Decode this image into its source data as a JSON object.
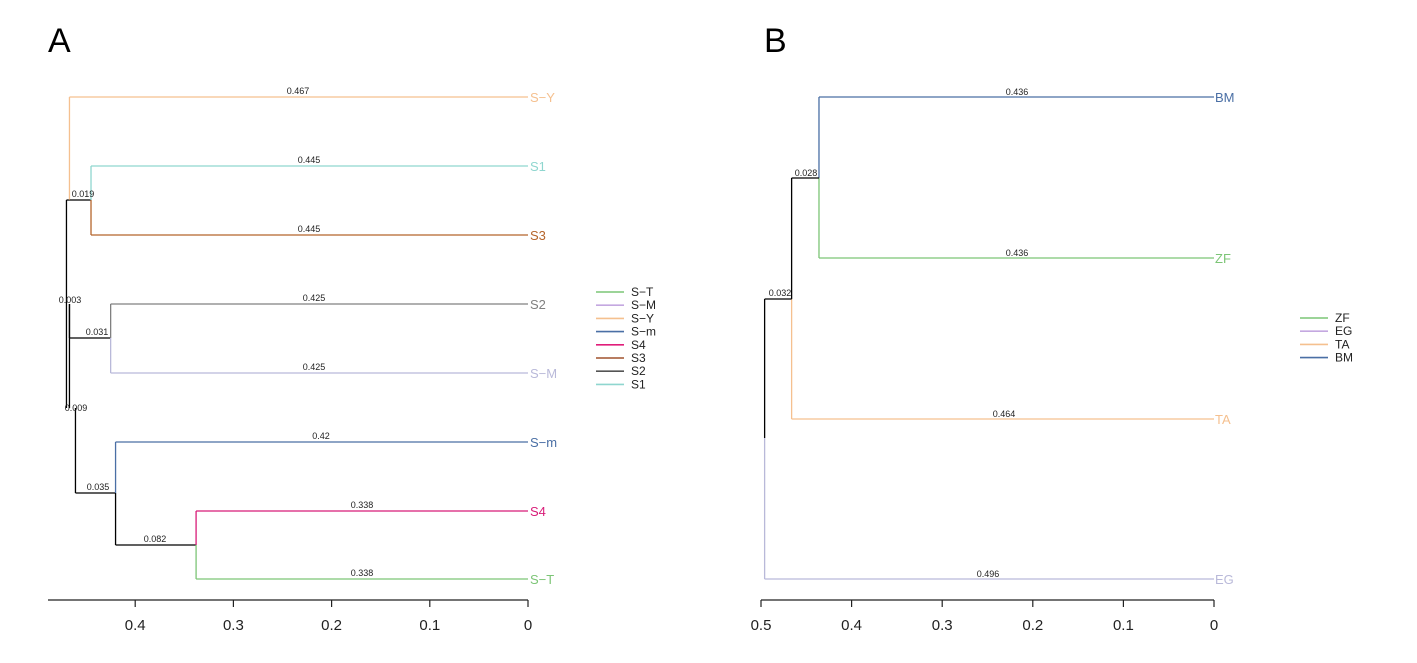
{
  "chart_data": [
    {
      "type": "dendrogram",
      "panel_label": "A",
      "xlim": [
        0.47,
        0
      ],
      "x_ticks": [
        0.4,
        0.3,
        0.2,
        0.1,
        0
      ],
      "x_tick_labels": [
        "0.4",
        "0.3",
        "0.2",
        "0.1",
        "0"
      ],
      "leaves": [
        {
          "name": "S−Y",
          "color": "#f5c08f",
          "height": 0.467
        },
        {
          "name": "S1",
          "color": "#8fd6cf",
          "height": 0.445
        },
        {
          "name": "S3",
          "color": "#b5652b",
          "height": 0.445
        },
        {
          "name": "S2",
          "color": "#808080",
          "height": 0.425
        },
        {
          "name": "S−M",
          "color": "#b9b9d9",
          "height": 0.425
        },
        {
          "name": "S−m",
          "color": "#4a6fa5",
          "height": 0.42
        },
        {
          "name": "S4",
          "color": "#d81b78",
          "height": 0.338
        },
        {
          "name": "S−T",
          "color": "#7cc576",
          "height": 0.338
        }
      ],
      "branch_labels": [
        "0.467",
        "0.445",
        "0.445",
        "0.019",
        "0.425",
        "0.425",
        "0.031",
        "0.003",
        "0.42",
        "0.338",
        "0.338",
        "0.082",
        "0.035",
        "0.009"
      ],
      "legend": [
        {
          "label": "S−T",
          "color": "#7cc576"
        },
        {
          "label": "S−M",
          "color": "#c4a8e0"
        },
        {
          "label": "S−Y",
          "color": "#f5c08f"
        },
        {
          "label": "S−m",
          "color": "#4a6fa5"
        },
        {
          "label": "S4",
          "color": "#e01e7a"
        },
        {
          "label": "S3",
          "color": "#a0522d"
        },
        {
          "label": "S2",
          "color": "#555555"
        },
        {
          "label": "S1",
          "color": "#8fd6cf"
        }
      ]
    },
    {
      "type": "dendrogram",
      "panel_label": "B",
      "xlim": [
        0.5,
        0
      ],
      "x_ticks": [
        0.5,
        0.4,
        0.3,
        0.2,
        0.1,
        0
      ],
      "x_tick_labels": [
        "0.5",
        "0.4",
        "0.3",
        "0.2",
        "0.1",
        "0"
      ],
      "leaves": [
        {
          "name": "BM",
          "color": "#4a6fa5",
          "height": 0.436
        },
        {
          "name": "ZF",
          "color": "#7cc576",
          "height": 0.436
        },
        {
          "name": "TA",
          "color": "#f5c08f",
          "height": 0.464
        },
        {
          "name": "EG",
          "color": "#b9b9d9",
          "height": 0.496
        }
      ],
      "branch_labels": [
        "0.436",
        "0.436",
        "0.028",
        "0.464",
        "0.032",
        "0.496"
      ],
      "legend": [
        {
          "label": "ZF",
          "color": "#7cc576"
        },
        {
          "label": "EG",
          "color": "#c4a8e0"
        },
        {
          "label": "TA",
          "color": "#f5c08f"
        },
        {
          "label": "BM",
          "color": "#4a6fa5"
        }
      ]
    }
  ]
}
